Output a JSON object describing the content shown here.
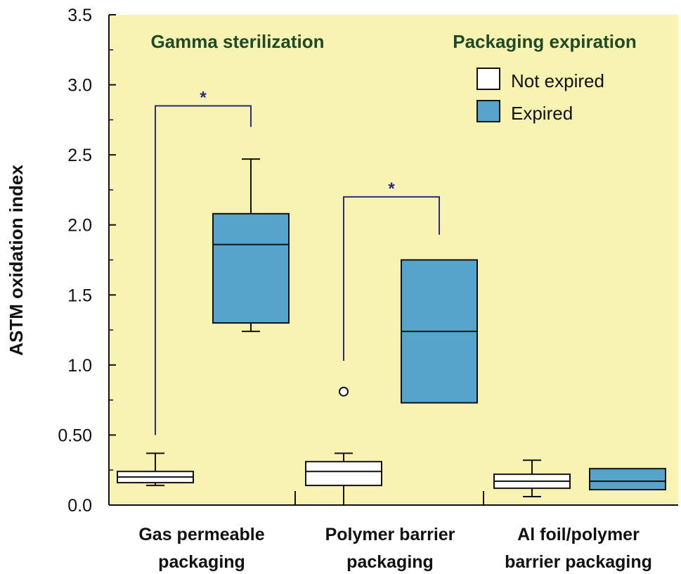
{
  "chart_data": {
    "type": "box",
    "ylabel": "ASTM oxidation index",
    "ylim": [
      0,
      3.5
    ],
    "y_ticks": [
      {
        "value": 0,
        "label": "0.0"
      },
      {
        "value": 0.5,
        "label": "0.50"
      },
      {
        "value": 1.0,
        "label": "1.0"
      },
      {
        "value": 1.5,
        "label": "1.5"
      },
      {
        "value": 2.0,
        "label": "2.0"
      },
      {
        "value": 2.5,
        "label": "2.5"
      },
      {
        "value": 3.0,
        "label": "3.0"
      },
      {
        "value": 3.5,
        "label": "3.5"
      }
    ],
    "categories": [
      {
        "lines": [
          "Gas permeable",
          "packaging"
        ]
      },
      {
        "lines": [
          "Polymer barrier",
          "packaging"
        ]
      },
      {
        "lines": [
          "Al foil/polymer",
          "barrier packaging"
        ]
      }
    ],
    "title_left": "Gamma sterilization",
    "legend_title": "Packaging expiration",
    "series": [
      {
        "name": "Not expired",
        "color": "#ffffff",
        "boxes": [
          {
            "category": 0,
            "min": 0.14,
            "q1": 0.16,
            "median": 0.2,
            "q3": 0.24,
            "max": 0.37,
            "outliers": []
          },
          {
            "category": 1,
            "min": 0.0,
            "q1": 0.14,
            "median": 0.24,
            "q3": 0.31,
            "max": 0.37,
            "outliers": [
              0.81
            ]
          },
          {
            "category": 2,
            "min": 0.06,
            "q1": 0.12,
            "median": 0.17,
            "q3": 0.22,
            "max": 0.32,
            "outliers": []
          }
        ]
      },
      {
        "name": "Expired",
        "color": "#56a3cc",
        "boxes": [
          {
            "category": 0,
            "min": 1.24,
            "q1": 1.3,
            "median": 1.86,
            "q3": 2.08,
            "max": 2.47,
            "outliers": []
          },
          {
            "category": 1,
            "min": 0.73,
            "q1": 0.73,
            "median": 1.24,
            "q3": 1.75,
            "max": 1.75,
            "outliers": []
          },
          {
            "category": 2,
            "min": 0.11,
            "q1": 0.11,
            "median": 0.17,
            "q3": 0.26,
            "max": 0.26,
            "outliers": []
          }
        ]
      }
    ],
    "significance": [
      {
        "category": 0,
        "label": "*",
        "bracket_y": 2.85,
        "left_bottom": 0.5,
        "right_bottom": 2.7
      },
      {
        "category": 1,
        "label": "*",
        "bracket_y": 2.2,
        "left_bottom": 1.03,
        "right_bottom": 1.93
      }
    ],
    "colors": {
      "plot_bg": "#f8f3b3",
      "title_green": "#1e4a26",
      "bracket": "#2b2b7a",
      "expired_fill": "#56a3cc",
      "axis": "#111111"
    }
  }
}
